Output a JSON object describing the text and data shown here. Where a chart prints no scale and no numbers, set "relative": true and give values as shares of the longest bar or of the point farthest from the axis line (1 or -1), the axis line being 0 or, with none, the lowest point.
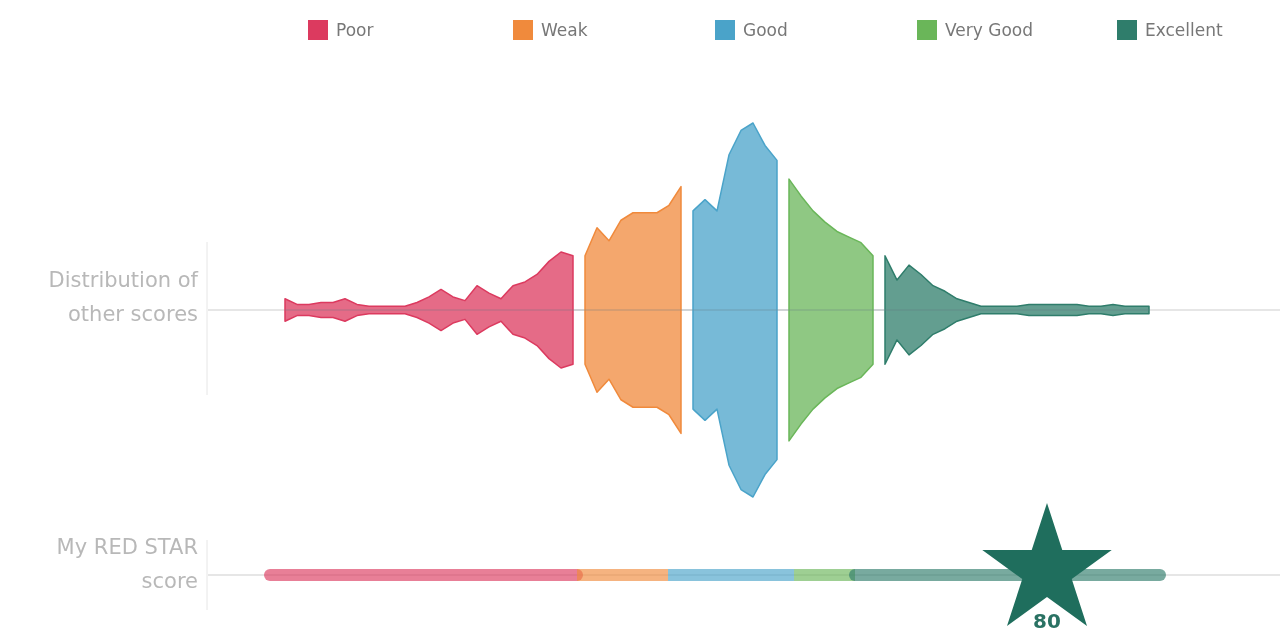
{
  "chart_data": [
    {
      "type": "area",
      "relative": true,
      "ylabel": "Distribution of other scores",
      "legend": "top",
      "categories": [
        null,
        null,
        null,
        null,
        null,
        null,
        null,
        null,
        null,
        null,
        null,
        null,
        null,
        null,
        null,
        null,
        null,
        null,
        null,
        null,
        null,
        null,
        null,
        null,
        null,
        null,
        null,
        null,
        null,
        null,
        null,
        null,
        null,
        null,
        null,
        null,
        null,
        null,
        null,
        null,
        null,
        null,
        null,
        null,
        null,
        null,
        null,
        null,
        null,
        null,
        null,
        null,
        null,
        null,
        null,
        null,
        null,
        null,
        null,
        null,
        null,
        null,
        null,
        null,
        null,
        null,
        null,
        null,
        null,
        null,
        null,
        null,
        null
      ],
      "series": [
        {
          "name": "Poor",
          "color": "#dc3a5f",
          "values": [
            0.06,
            0.03,
            0.03,
            0.04,
            0.04,
            0.06,
            0.03,
            0.02,
            0.02,
            0.02,
            0.02,
            0.04,
            0.07,
            0.11,
            0.07,
            0.05,
            0.13,
            0.09,
            0.06,
            0.13,
            0.15,
            0.19,
            0.26,
            0.31,
            0.29,
            null,
            null,
            null,
            null,
            null,
            null,
            null,
            null,
            null,
            null,
            null,
            null,
            null,
            null,
            null,
            null,
            null,
            null,
            null,
            null,
            null,
            null,
            null,
            null,
            null,
            null,
            null,
            null,
            null,
            null,
            null,
            null,
            null,
            null,
            null,
            null,
            null,
            null,
            null,
            null,
            null,
            null,
            null,
            null,
            null,
            null,
            null,
            null
          ]
        },
        {
          "name": "Weak",
          "color": "#f08a3c",
          "values": [
            null,
            null,
            null,
            null,
            null,
            null,
            null,
            null,
            null,
            null,
            null,
            null,
            null,
            null,
            null,
            null,
            null,
            null,
            null,
            null,
            null,
            null,
            null,
            null,
            null,
            0.29,
            0.44,
            0.37,
            0.48,
            0.52,
            0.52,
            0.52,
            0.56,
            0.66,
            null,
            null,
            null,
            null,
            null,
            null,
            null,
            null,
            null,
            null,
            null,
            null,
            null,
            null,
            null,
            null,
            null,
            null,
            null,
            null,
            null,
            null,
            null,
            null,
            null,
            null,
            null,
            null,
            null,
            null,
            null,
            null,
            null,
            null,
            null,
            null,
            null,
            null,
            null
          ]
        },
        {
          "name": "Good",
          "color": "#4aa3c9",
          "values": [
            null,
            null,
            null,
            null,
            null,
            null,
            null,
            null,
            null,
            null,
            null,
            null,
            null,
            null,
            null,
            null,
            null,
            null,
            null,
            null,
            null,
            null,
            null,
            null,
            null,
            null,
            null,
            null,
            null,
            null,
            null,
            null,
            null,
            null,
            0.53,
            0.59,
            0.53,
            0.83,
            0.96,
            1,
            0.88,
            0.8,
            null,
            null,
            null,
            null,
            null,
            null,
            null,
            null,
            null,
            null,
            null,
            null,
            null,
            null,
            null,
            null,
            null,
            null,
            null,
            null,
            null,
            null,
            null,
            null,
            null,
            null,
            null,
            null,
            null,
            null,
            null
          ]
        },
        {
          "name": "Very Good",
          "color": "#6ab659",
          "values": [
            null,
            null,
            null,
            null,
            null,
            null,
            null,
            null,
            null,
            null,
            null,
            null,
            null,
            null,
            null,
            null,
            null,
            null,
            null,
            null,
            null,
            null,
            null,
            null,
            null,
            null,
            null,
            null,
            null,
            null,
            null,
            null,
            null,
            null,
            null,
            null,
            null,
            null,
            null,
            null,
            null,
            null,
            0.7,
            0.61,
            0.53,
            0.47,
            0.42,
            0.39,
            0.36,
            0.29,
            null,
            null,
            null,
            null,
            null,
            null,
            null,
            null,
            null,
            null,
            null,
            null,
            null,
            null,
            null,
            null,
            null,
            null,
            null,
            null,
            null,
            null,
            null
          ]
        },
        {
          "name": "Excellent",
          "color": "#2f7d6b",
          "values": [
            null,
            null,
            null,
            null,
            null,
            null,
            null,
            null,
            null,
            null,
            null,
            null,
            null,
            null,
            null,
            null,
            null,
            null,
            null,
            null,
            null,
            null,
            null,
            null,
            null,
            null,
            null,
            null,
            null,
            null,
            null,
            null,
            null,
            null,
            null,
            null,
            null,
            null,
            null,
            null,
            null,
            null,
            null,
            null,
            null,
            null,
            null,
            null,
            null,
            null,
            0.29,
            0.16,
            0.24,
            0.19,
            0.13,
            0.1,
            0.06,
            0.04,
            0.02,
            0.02,
            0.02,
            0.02,
            0.03,
            0.03,
            0.03,
            0.03,
            0.03,
            0.02,
            0.02,
            0.03,
            0.02,
            0.02,
            0.02
          ]
        }
      ]
    },
    {
      "type": "other",
      "ylabel": "My RED STAR score",
      "annotations": [
        "80"
      ]
    }
  ]
}
